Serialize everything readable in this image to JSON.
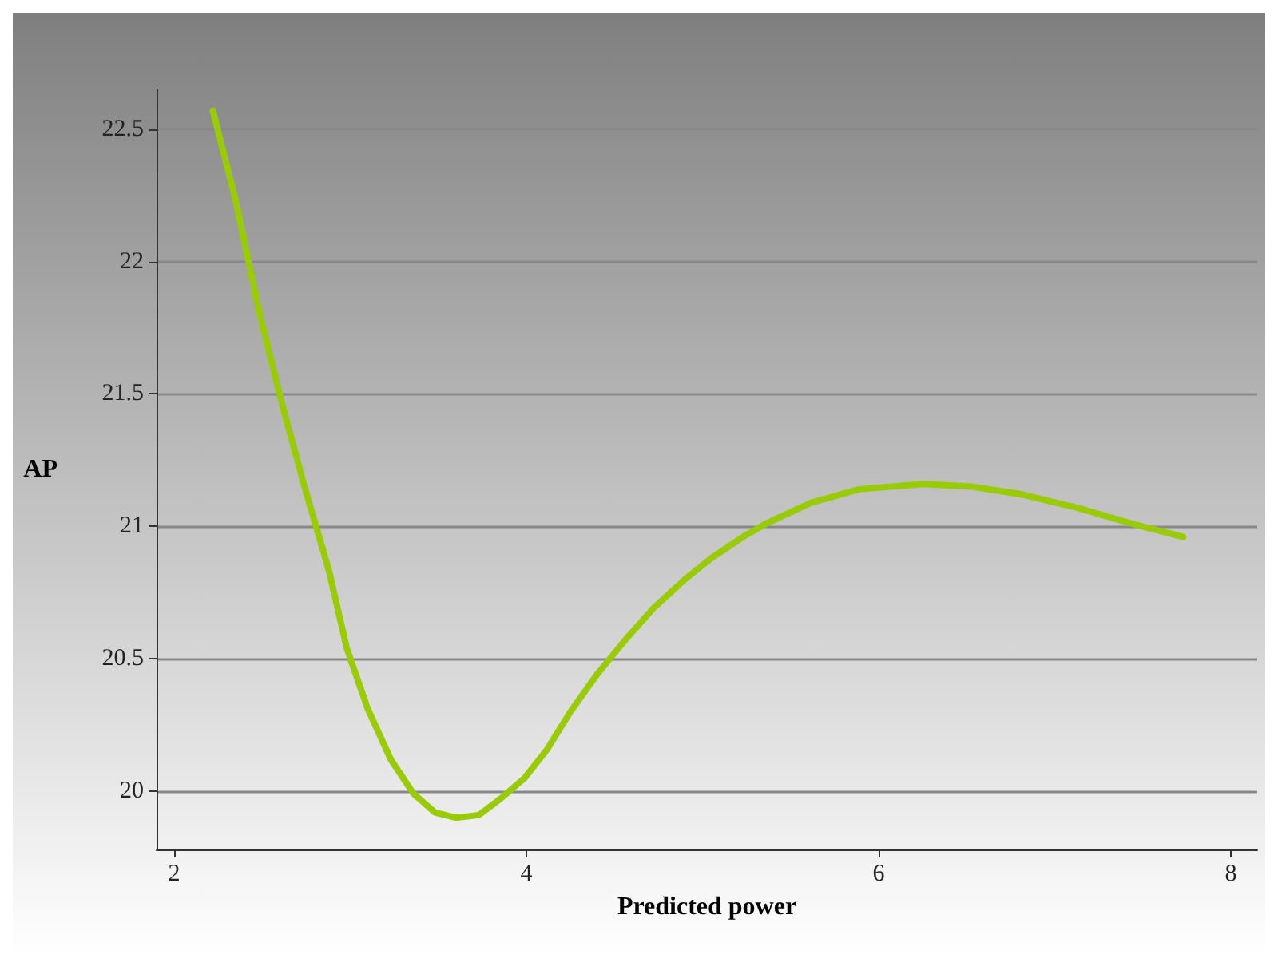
{
  "chart_data": {
    "type": "line",
    "xlabel": "Predicted power",
    "ylabel": "AP",
    "x": [
      2.22,
      2.35,
      2.48,
      2.61,
      2.74,
      2.88,
      2.98,
      3.1,
      3.23,
      3.36,
      3.48,
      3.6,
      3.73,
      3.85,
      3.99,
      4.12,
      4.25,
      4.4,
      4.56,
      4.72,
      4.9,
      5.05,
      5.23,
      5.36,
      5.62,
      5.89,
      6.25,
      6.53,
      6.82,
      7.13,
      7.44,
      7.73
    ],
    "series": [
      {
        "color": "#99cc00",
        "values": [
          22.57,
          22.23,
          21.82,
          21.47,
          21.15,
          20.83,
          20.54,
          20.31,
          20.12,
          19.99,
          19.92,
          19.9,
          19.91,
          19.97,
          20.05,
          20.16,
          20.3,
          20.44,
          20.57,
          20.69,
          20.8,
          20.88,
          20.96,
          21.01,
          21.09,
          21.14,
          21.16,
          21.15,
          21.12,
          21.07,
          21.01,
          20.96
        ]
      }
    ],
    "xlim": [
      1.9,
      8.15
    ],
    "xticks": [
      2,
      4,
      6,
      8
    ],
    "ylim": [
      19.78,
      22.65
    ],
    "yticks": [
      20,
      20.5,
      21,
      21.5,
      22,
      22.5
    ],
    "grid": "y",
    "marker": "none",
    "line_style": "solid"
  }
}
